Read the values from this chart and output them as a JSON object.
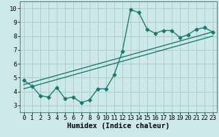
{
  "title": "",
  "xlabel": "Humidex (Indice chaleur)",
  "background_color": "#cce8e8",
  "grid_color": "#aacccc",
  "line_color": "#1a7a6e",
  "xlim": [
    -0.5,
    23.5
  ],
  "ylim": [
    2.5,
    10.5
  ],
  "xticks": [
    0,
    1,
    2,
    3,
    4,
    5,
    6,
    7,
    8,
    9,
    10,
    11,
    12,
    13,
    14,
    15,
    16,
    17,
    18,
    19,
    20,
    21,
    22,
    23
  ],
  "yticks": [
    3,
    4,
    5,
    6,
    7,
    8,
    9,
    10
  ],
  "series1_x": [
    0,
    1,
    2,
    3,
    4,
    5,
    6,
    7,
    8,
    9,
    10,
    11,
    12,
    13,
    14,
    15,
    16,
    17,
    18,
    19,
    20,
    21,
    22,
    23
  ],
  "series1_y": [
    4.8,
    4.4,
    3.7,
    3.6,
    4.3,
    3.5,
    3.6,
    3.2,
    3.4,
    4.2,
    4.2,
    5.2,
    6.9,
    9.9,
    9.7,
    8.5,
    8.2,
    8.4,
    8.4,
    7.9,
    8.1,
    8.5,
    8.6,
    8.3
  ],
  "series2_x": [
    0,
    23
  ],
  "series2_y": [
    4.5,
    8.3
  ],
  "series3_x": [
    0,
    23
  ],
  "series3_y": [
    4.2,
    8.0
  ],
  "marker": "D",
  "markersize": 2.5,
  "linewidth": 1.0,
  "tick_fontsize": 6.5,
  "xlabel_fontsize": 7.5
}
